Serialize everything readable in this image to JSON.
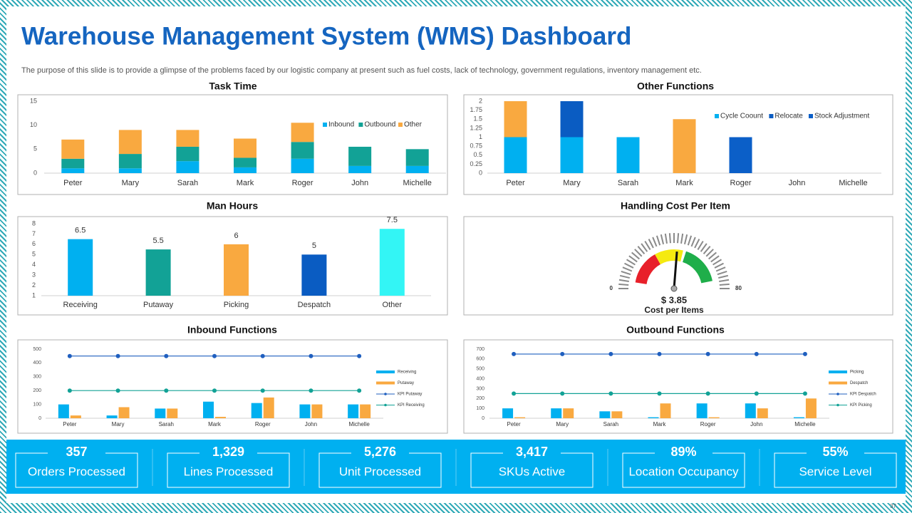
{
  "title": "Warehouse Management System (WMS) Dashboard",
  "subtitle": "The purpose of this slide is to provide a glimpse of the problems faced by our logistic company at present such as fuel costs, lack of technology, government  regulations, inventory management  etc.",
  "chart_data": [
    {
      "type": "stacked_bar",
      "title": "Task Time",
      "categories": [
        "Peter",
        "Mary",
        "Sarah",
        "Mark",
        "Roger",
        "John",
        "Michelle"
      ],
      "series": [
        {
          "name": "Inbound",
          "color": "#00b0f0",
          "values": [
            1,
            1,
            2.5,
            1.2,
            3,
            1.5,
            1.5
          ]
        },
        {
          "name": "Outbound",
          "color": "#12a296",
          "values": [
            2,
            3,
            3,
            2,
            3.5,
            4,
            3.5
          ]
        },
        {
          "name": "Other",
          "color": "#f9a940",
          "values": [
            4,
            5,
            3.5,
            4,
            4,
            0,
            0
          ]
        }
      ],
      "ylim": [
        0,
        15
      ],
      "yticks": [
        0,
        5,
        10,
        15
      ],
      "grid": false,
      "legend": "top-right"
    },
    {
      "type": "stacked_bar",
      "title": "Other Functions",
      "categories": [
        "Peter",
        "Mary",
        "Sarah",
        "Mark",
        "Roger",
        "John",
        "Michelle"
      ],
      "series": [
        {
          "name": "Cycle Coount",
          "color": "#00b0f0",
          "values": [
            1,
            1,
            1,
            0,
            0,
            0,
            0
          ]
        },
        {
          "name": "Relocate",
          "color": "#0a5cc2",
          "values": [
            0,
            1,
            0,
            0,
            0,
            0,
            0
          ]
        },
        {
          "name": "Stock Adjustment",
          "color": "#0b5fc8",
          "values": [
            0,
            0,
            0,
            0,
            1,
            0,
            0
          ]
        },
        {
          "color": "#f9a940",
          "values": [
            1,
            0,
            0,
            1.5,
            0,
            0,
            0
          ]
        }
      ],
      "ylim": [
        0,
        2
      ],
      "yticks": [
        0,
        0.25,
        0.5,
        0.75,
        1,
        1.25,
        1.5,
        1.75,
        2
      ],
      "grid": false,
      "legend": "top-right"
    },
    {
      "type": "bar",
      "title": "Man Hours",
      "categories": [
        "Receiving",
        "Putaway",
        "Picking",
        "Despatch",
        "Other"
      ],
      "values": [
        6.5,
        5.5,
        6,
        5,
        7.5
      ],
      "colors": [
        "#00b0f0",
        "#12a296",
        "#f9a940",
        "#0a5cc2",
        "#33f5f5"
      ],
      "ylim": [
        1,
        8
      ],
      "yticks": [
        1,
        2,
        3,
        4,
        5,
        6,
        7,
        8
      ],
      "grid": false
    },
    {
      "type": "gauge",
      "title": "Handling Cost Per Item",
      "value": 42,
      "readout": "$ 3.85",
      "caption": "Cost per Items",
      "ylim": [
        0,
        80
      ],
      "yticks": [
        0,
        80
      ],
      "bands": [
        {
          "from": 4,
          "to": 27,
          "color": "#e8202a"
        },
        {
          "from": 27,
          "to": 46,
          "color": "#f5ea10"
        },
        {
          "from": 48,
          "to": 75,
          "color": "#1fae4a"
        }
      ]
    },
    {
      "type": "combo",
      "title": "Inbound Functions",
      "categories": [
        "Peter",
        "Mary",
        "Sarah",
        "Mark",
        "Roger",
        "John",
        "Michelle"
      ],
      "series": [
        {
          "name": "Receiving",
          "type": "bar",
          "color": "#00b0f0",
          "values": [
            100,
            20,
            70,
            120,
            110,
            100,
            100
          ]
        },
        {
          "name": "Putaway",
          "type": "bar",
          "color": "#f9a940",
          "values": [
            20,
            80,
            70,
            10,
            150,
            100,
            100
          ]
        },
        {
          "name": "KPI Putaway",
          "type": "line",
          "color": "#1f5fbf",
          "values": [
            450,
            450,
            450,
            450,
            450,
            450,
            450
          ]
        },
        {
          "name": "KPI Receiving",
          "type": "line",
          "color": "#12a296",
          "values": [
            200,
            200,
            200,
            200,
            200,
            200,
            200
          ]
        }
      ],
      "ylim": [
        0,
        500
      ],
      "yticks": [
        0,
        100,
        200,
        300,
        400,
        500
      ],
      "grid": false,
      "legend": "right"
    },
    {
      "type": "combo",
      "title": "Outbound Functions",
      "categories": [
        "Peter",
        "Mary",
        "Sarah",
        "Mark",
        "Roger",
        "John",
        "Michelle"
      ],
      "series": [
        {
          "name": "Picking",
          "type": "bar",
          "color": "#00b0f0",
          "values": [
            100,
            100,
            70,
            10,
            150,
            150,
            10
          ]
        },
        {
          "name": "Despatch",
          "type": "bar",
          "color": "#f9a940",
          "values": [
            10,
            100,
            70,
            150,
            10,
            100,
            200
          ]
        },
        {
          "name": "KPI Despatch",
          "type": "line",
          "color": "#1f5fbf",
          "values": [
            650,
            650,
            650,
            650,
            650,
            650,
            650
          ]
        },
        {
          "name": "KPI Picking",
          "type": "line",
          "color": "#12a296",
          "values": [
            250,
            250,
            250,
            250,
            250,
            250,
            250
          ]
        }
      ],
      "ylim": [
        0,
        700
      ],
      "yticks": [
        0,
        100,
        200,
        300,
        400,
        500,
        600,
        700
      ],
      "grid": false,
      "legend": "right"
    }
  ],
  "kpis": [
    {
      "value": 357,
      "label": "Orders Processed"
    },
    {
      "value": 1329,
      "value_label": "1,329",
      "label": "Lines Processed"
    },
    {
      "value": 5276,
      "value_label": "5,276",
      "label": "Unit Processed"
    },
    {
      "value": 3417,
      "value_label": "3,417",
      "label": "SKUs Active"
    },
    {
      "value": 89,
      "value_label": "89%",
      "label": "Location Occupancy"
    },
    {
      "value": 55,
      "value_label": "55%",
      "label": "Service Level"
    }
  ],
  "page_number": "37"
}
